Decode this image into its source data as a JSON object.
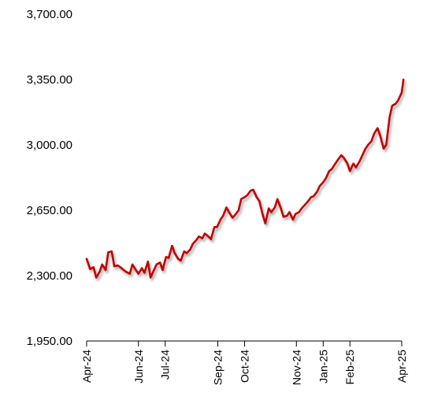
{
  "chart_data": {
    "type": "line",
    "title": "",
    "xlabel": "",
    "ylabel": "",
    "ylim": [
      1950,
      3700
    ],
    "y_ticks": [
      "1,950.00",
      "2,300.00",
      "2,650.00",
      "3,000.00",
      "3,350.00",
      "3,700.00"
    ],
    "y_tick_values": [
      1950,
      2300,
      2650,
      3000,
      3350,
      3700
    ],
    "x_ticks": [
      "Apr-24",
      "Jun-24",
      "Jul-24",
      "Sep-24",
      "Oct-24",
      "Nov-24",
      "Jan-25",
      "Feb-25",
      "Apr-25"
    ],
    "x_tick_dates": [
      "2024-04-01",
      "2024-05-31",
      "2024-07-01",
      "2024-08-31",
      "2024-10-01",
      "2024-11-30",
      "2024-12-31",
      "2025-01-31",
      "2025-04-01"
    ],
    "line_color": "#c00000",
    "grid": false,
    "legend": "none",
    "series": [
      {
        "x": [
          "2024-04-01",
          "2024-04-05",
          "2024-04-09",
          "2024-04-12",
          "2024-04-16",
          "2024-04-19",
          "2024-04-23",
          "2024-04-26",
          "2024-04-30",
          "2024-05-03",
          "2024-05-07",
          "2024-05-10",
          "2024-05-14",
          "2024-05-17",
          "2024-05-21",
          "2024-05-24",
          "2024-05-28",
          "2024-05-31",
          "2024-06-04",
          "2024-06-07",
          "2024-06-11",
          "2024-06-14",
          "2024-06-18",
          "2024-06-21",
          "2024-06-25",
          "2024-06-28",
          "2024-07-02",
          "2024-07-05",
          "2024-07-09",
          "2024-07-12",
          "2024-07-16",
          "2024-07-19",
          "2024-07-23",
          "2024-07-26",
          "2024-07-30",
          "2024-08-02",
          "2024-08-06",
          "2024-08-09",
          "2024-08-13",
          "2024-08-16",
          "2024-08-20",
          "2024-08-23",
          "2024-08-27",
          "2024-08-30",
          "2024-09-03",
          "2024-09-06",
          "2024-09-10",
          "2024-09-13",
          "2024-09-17",
          "2024-09-20",
          "2024-09-24",
          "2024-09-27",
          "2024-10-01",
          "2024-10-04",
          "2024-10-08",
          "2024-10-11",
          "2024-10-15",
          "2024-10-18",
          "2024-10-22",
          "2024-10-25",
          "2024-10-29",
          "2024-11-01",
          "2024-11-05",
          "2024-11-08",
          "2024-11-12",
          "2024-11-15",
          "2024-11-19",
          "2024-11-22",
          "2024-11-26",
          "2024-11-29",
          "2024-12-03",
          "2024-12-06",
          "2024-12-10",
          "2024-12-13",
          "2024-12-17",
          "2024-12-20",
          "2024-12-24",
          "2024-12-27",
          "2024-12-31",
          "2025-01-03",
          "2025-01-07",
          "2025-01-10",
          "2025-01-14",
          "2025-01-17",
          "2025-01-21",
          "2025-01-24",
          "2025-01-28",
          "2025-01-31",
          "2025-02-04",
          "2025-02-07",
          "2025-02-11",
          "2025-02-14",
          "2025-02-18",
          "2025-02-21",
          "2025-02-25",
          "2025-02-28",
          "2025-03-04",
          "2025-03-07",
          "2025-03-11",
          "2025-03-14",
          "2025-03-18",
          "2025-03-21",
          "2025-03-25",
          "2025-03-28",
          "2025-04-01",
          "2025-04-03"
        ],
        "values": [
          2390,
          2335,
          2345,
          2290,
          2320,
          2360,
          2330,
          2425,
          2430,
          2350,
          2355,
          2345,
          2330,
          2320,
          2310,
          2360,
          2330,
          2310,
          2340,
          2315,
          2375,
          2290,
          2330,
          2360,
          2370,
          2330,
          2400,
          2395,
          2460,
          2420,
          2390,
          2380,
          2430,
          2420,
          2440,
          2470,
          2490,
          2510,
          2500,
          2525,
          2510,
          2495,
          2560,
          2560,
          2600,
          2620,
          2665,
          2640,
          2610,
          2625,
          2650,
          2710,
          2720,
          2730,
          2755,
          2760,
          2720,
          2700,
          2625,
          2580,
          2660,
          2640,
          2665,
          2710,
          2660,
          2615,
          2620,
          2640,
          2600,
          2630,
          2640,
          2660,
          2680,
          2695,
          2720,
          2725,
          2750,
          2780,
          2800,
          2820,
          2860,
          2870,
          2900,
          2920,
          2945,
          2930,
          2900,
          2860,
          2900,
          2880,
          2910,
          2940,
          2980,
          3000,
          3020,
          3060,
          3090,
          3050,
          2980,
          3000,
          3150,
          3210,
          3220,
          3240,
          3280,
          3350
        ]
      }
    ]
  }
}
